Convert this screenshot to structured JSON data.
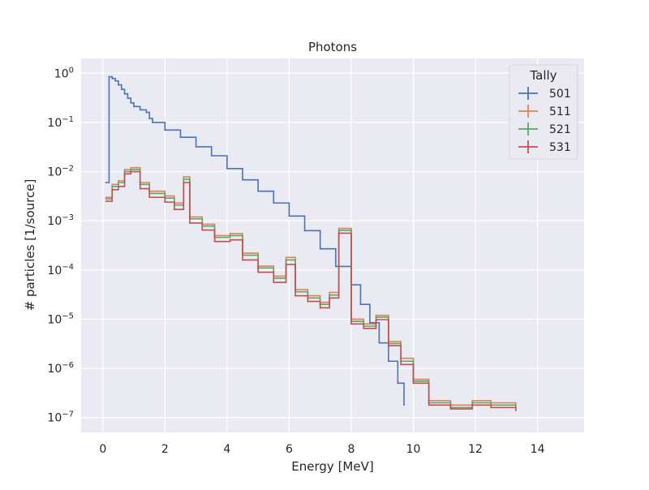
{
  "chart_data": {
    "type": "line",
    "subtype": "step",
    "title": "Photons",
    "xlabel": "Energy [MeV]",
    "ylabel": "# particles [1/source]",
    "xlim": [
      -0.7,
      15.5
    ],
    "ylim": [
      5e-08,
      2.0
    ],
    "yscale": "log",
    "grid": true,
    "x_ticks": [
      0,
      2,
      4,
      6,
      8,
      10,
      12,
      14
    ],
    "x_tick_labels": [
      "0",
      "2",
      "4",
      "6",
      "8",
      "10",
      "12",
      "14"
    ],
    "y_tick_values": [
      1e-07,
      1e-06,
      1e-05,
      0.0001,
      0.001,
      0.01,
      0.1,
      1
    ],
    "y_tick_labels": [
      {
        "base": "10",
        "exp": "−7"
      },
      {
        "base": "10",
        "exp": "−6"
      },
      {
        "base": "10",
        "exp": "−5"
      },
      {
        "base": "10",
        "exp": "−4"
      },
      {
        "base": "10",
        "exp": "−3"
      },
      {
        "base": "10",
        "exp": "−2"
      },
      {
        "base": "10",
        "exp": "−1"
      },
      {
        "base": "10",
        "exp": "0"
      }
    ],
    "legend": {
      "title": "Tally",
      "position": "top-right"
    },
    "series": [
      {
        "name": "501",
        "color": "#4c72b0",
        "points": [
          [
            0.1,
            0.006
          ],
          [
            0.2,
            0.85
          ],
          [
            0.3,
            0.78
          ],
          [
            0.4,
            0.7
          ],
          [
            0.5,
            0.58
          ],
          [
            0.6,
            0.47
          ],
          [
            0.7,
            0.38
          ],
          [
            0.8,
            0.31
          ],
          [
            0.9,
            0.25
          ],
          [
            1.0,
            0.21
          ],
          [
            1.2,
            0.18
          ],
          [
            1.4,
            0.16
          ],
          [
            1.5,
            0.12
          ],
          [
            1.6,
            0.1
          ],
          [
            2.0,
            0.07
          ],
          [
            2.5,
            0.05
          ],
          [
            3.0,
            0.032
          ],
          [
            3.5,
            0.021
          ],
          [
            4.0,
            0.0115
          ],
          [
            4.5,
            0.0068
          ],
          [
            5.0,
            0.004
          ],
          [
            5.5,
            0.0023
          ],
          [
            6.0,
            0.00125
          ],
          [
            6.5,
            0.00063
          ],
          [
            7.0,
            0.00027
          ],
          [
            7.5,
            0.000118
          ],
          [
            8.0,
            5e-05
          ],
          [
            8.3,
            2e-05
          ],
          [
            8.6,
            8.5e-06
          ],
          [
            8.9,
            3.3e-06
          ],
          [
            9.2,
            1.4e-06
          ],
          [
            9.5,
            5e-07
          ],
          [
            9.7,
            1.8e-07
          ]
        ]
      },
      {
        "name": "511",
        "color": "#dd8452",
        "points": [
          [
            0.1,
            0.003
          ],
          [
            0.3,
            0.0055
          ],
          [
            0.5,
            0.0065
          ],
          [
            0.7,
            0.011
          ],
          [
            0.9,
            0.012
          ],
          [
            1.2,
            0.006
          ],
          [
            1.5,
            0.004
          ],
          [
            2.0,
            0.0032
          ],
          [
            2.3,
            0.0023
          ],
          [
            2.6,
            0.0078
          ],
          [
            2.8,
            0.0012
          ],
          [
            3.2,
            0.00085
          ],
          [
            3.6,
            0.0005
          ],
          [
            4.1,
            0.00055
          ],
          [
            4.5,
            0.00022
          ],
          [
            5.0,
            0.00012
          ],
          [
            5.5,
            7.5e-05
          ],
          [
            5.9,
            0.00018
          ],
          [
            6.2,
            4e-05
          ],
          [
            6.6,
            3e-05
          ],
          [
            7.0,
            2.2e-05
          ],
          [
            7.3,
            3.5e-05
          ],
          [
            7.6,
            0.0007
          ],
          [
            8.0,
            1e-05
          ],
          [
            8.4,
            8e-06
          ],
          [
            8.8,
            1.2e-05
          ],
          [
            9.2,
            3.5e-06
          ],
          [
            9.6,
            1.6e-06
          ],
          [
            10.0,
            6e-07
          ],
          [
            10.5,
            2.2e-07
          ],
          [
            11.2,
            1.8e-07
          ],
          [
            11.9,
            2.2e-07
          ],
          [
            12.5,
            2e-07
          ],
          [
            13.3,
            1.6e-07
          ]
        ]
      },
      {
        "name": "521",
        "color": "#55a868",
        "points": [
          [
            0.1,
            0.0028
          ],
          [
            0.3,
            0.005
          ],
          [
            0.5,
            0.006
          ],
          [
            0.7,
            0.01
          ],
          [
            0.9,
            0.011
          ],
          [
            1.2,
            0.0055
          ],
          [
            1.5,
            0.0036
          ],
          [
            2.0,
            0.0029
          ],
          [
            2.3,
            0.0021
          ],
          [
            2.6,
            0.007
          ],
          [
            2.8,
            0.0011
          ],
          [
            3.2,
            0.00078
          ],
          [
            3.6,
            0.00046
          ],
          [
            4.1,
            0.0005
          ],
          [
            4.5,
            0.0002
          ],
          [
            5.0,
            0.00011
          ],
          [
            5.5,
            6.8e-05
          ],
          [
            5.9,
            0.00016
          ],
          [
            6.2,
            3.6e-05
          ],
          [
            6.6,
            2.7e-05
          ],
          [
            7.0,
            2e-05
          ],
          [
            7.3,
            3.1e-05
          ],
          [
            7.6,
            0.00064
          ],
          [
            8.0,
            9e-06
          ],
          [
            8.4,
            7.2e-06
          ],
          [
            8.8,
            1.1e-05
          ],
          [
            9.2,
            3.2e-06
          ],
          [
            9.6,
            1.4e-06
          ],
          [
            10.0,
            5.5e-07
          ],
          [
            10.5,
            2e-07
          ],
          [
            11.2,
            1.6e-07
          ],
          [
            11.9,
            2e-07
          ],
          [
            12.5,
            1.8e-07
          ],
          [
            13.3,
            1.5e-07
          ]
        ]
      },
      {
        "name": "531",
        "color": "#c44e52",
        "points": [
          [
            0.1,
            0.0025
          ],
          [
            0.3,
            0.0043
          ],
          [
            0.5,
            0.005
          ],
          [
            0.7,
            0.009
          ],
          [
            0.9,
            0.01
          ],
          [
            1.2,
            0.0045
          ],
          [
            1.5,
            0.003
          ],
          [
            2.0,
            0.0024
          ],
          [
            2.3,
            0.0017
          ],
          [
            2.6,
            0.006
          ],
          [
            2.8,
            0.0009
          ],
          [
            3.2,
            0.00065
          ],
          [
            3.6,
            0.00038
          ],
          [
            4.1,
            0.00041
          ],
          [
            4.5,
            0.00016
          ],
          [
            5.0,
            9e-05
          ],
          [
            5.5,
            5.6e-05
          ],
          [
            5.9,
            0.00013
          ],
          [
            6.2,
            3e-05
          ],
          [
            6.6,
            2.3e-05
          ],
          [
            7.0,
            1.7e-05
          ],
          [
            7.3,
            2.7e-05
          ],
          [
            7.6,
            0.00056
          ],
          [
            8.0,
            8e-06
          ],
          [
            8.4,
            6.5e-06
          ],
          [
            8.8,
            9.8e-06
          ],
          [
            9.2,
            2.9e-06
          ],
          [
            9.6,
            1.2e-06
          ],
          [
            10.0,
            5e-07
          ],
          [
            10.5,
            1.8e-07
          ],
          [
            11.2,
            1.5e-07
          ],
          [
            11.9,
            1.8e-07
          ],
          [
            12.5,
            1.6e-07
          ],
          [
            13.3,
            1.4e-07
          ]
        ]
      }
    ]
  }
}
